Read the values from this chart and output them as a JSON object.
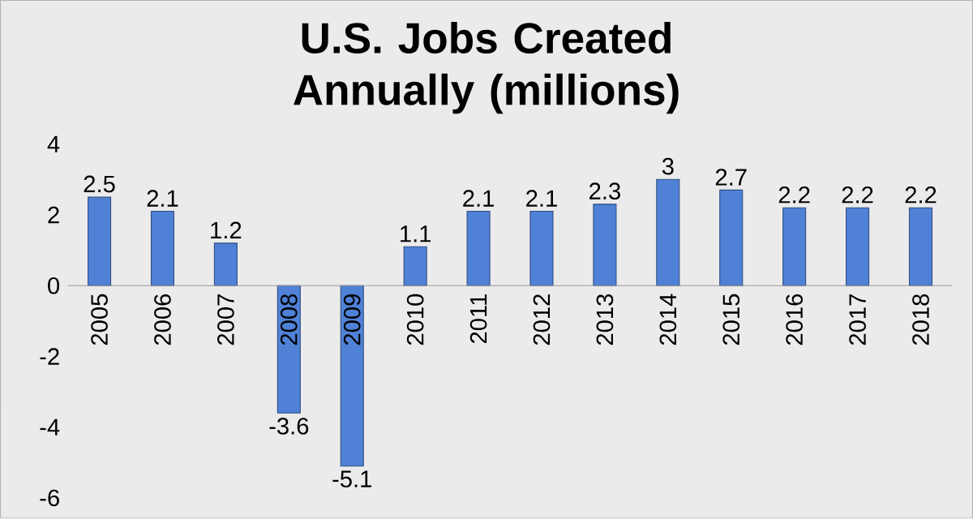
{
  "chart_data": {
    "type": "bar",
    "title": "U.S. Jobs Created Annually (millions)",
    "categories": [
      "2005",
      "2006",
      "2007",
      "2008",
      "2009",
      "2010",
      "2011",
      "2012",
      "2013",
      "2014",
      "2015",
      "2016",
      "2017",
      "2018"
    ],
    "values": [
      2.5,
      2.1,
      1.2,
      -3.6,
      -5.1,
      1.1,
      2.1,
      2.1,
      2.3,
      3,
      2.7,
      2.2,
      2.2,
      2.2
    ],
    "color": "#4f81d6",
    "ylim": [
      -6,
      4
    ],
    "yticks": [
      -6,
      -4,
      -2,
      0,
      2,
      4
    ],
    "data_labels": true
  }
}
